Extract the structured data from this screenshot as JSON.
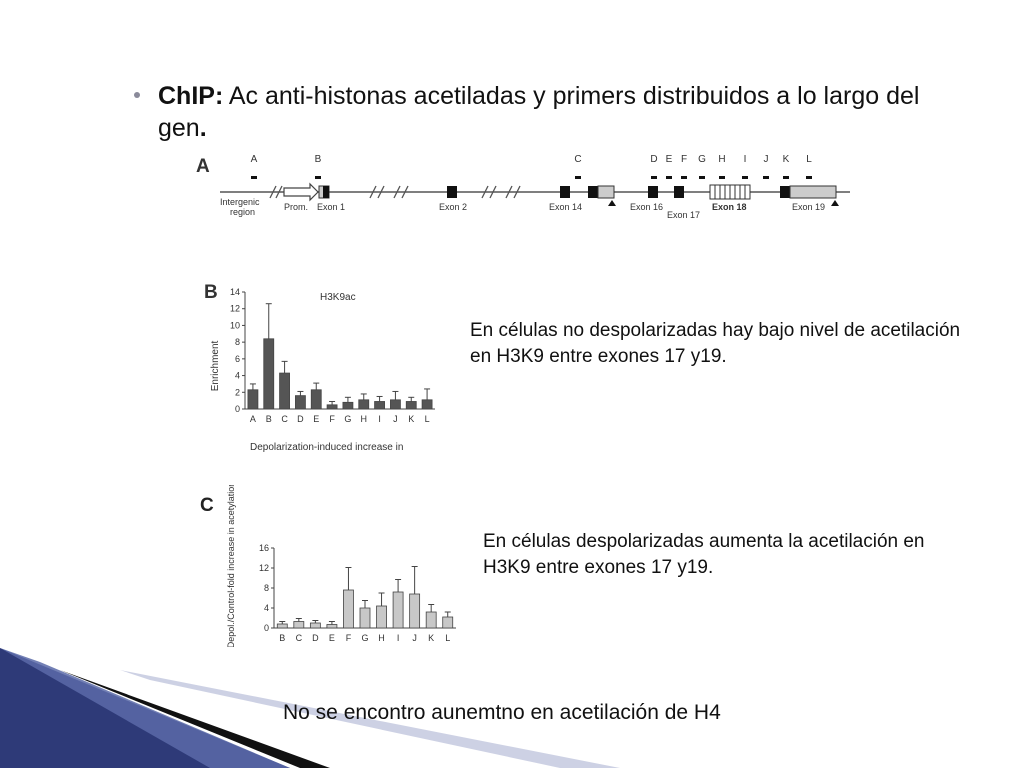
{
  "slide": {
    "title_bold": "ChIP:",
    "title_text": " Ac anti-histonas acetiladas y primers distribuidos a lo largo del gen",
    "title_end": ".",
    "note_b": "En células no despolarizadas hay bajo nivel de acetilación en H3K9 entre exones 17 y19.",
    "note_c": "En células despolarizadas aumenta la acetilación en H3K9 entre exones 17 y19.",
    "footer": "No se encontro aunemtno en acetilación de H4"
  },
  "gene_map": {
    "panel_label": "A",
    "primer_labels": [
      "A",
      "B",
      "C",
      "D",
      "E",
      "F",
      "G",
      "H",
      "I",
      "J",
      "K",
      "L"
    ],
    "region_labels": [
      "Intergenic",
      "region",
      "Prom.",
      "Exon 1",
      "Exon 2",
      "Exon 14",
      "Exon 16",
      "Exon 17",
      "Exon 18",
      "Exon 19"
    ]
  },
  "chart_data": [
    {
      "type": "bar",
      "panel_label": "B",
      "title": "H3K9ac",
      "ylabel": "Enrichment",
      "xlabel": "Depolarization-induced increase in",
      "categories": [
        "A",
        "B",
        "C",
        "D",
        "E",
        "F",
        "G",
        "H",
        "I",
        "J",
        "K",
        "L"
      ],
      "values": [
        2.3,
        8.4,
        4.3,
        1.6,
        2.3,
        0.5,
        0.8,
        1.1,
        0.9,
        1.1,
        0.9,
        1.1
      ],
      "errors": [
        0.7,
        4.2,
        1.4,
        0.5,
        0.8,
        0.4,
        0.6,
        0.7,
        0.6,
        1.0,
        0.5,
        1.3
      ],
      "ylim": [
        0,
        14
      ],
      "yticks": [
        0,
        2,
        4,
        6,
        8,
        10,
        12,
        14
      ],
      "color": "#555555"
    },
    {
      "type": "bar",
      "panel_label": "C",
      "ylabel": "Depol./Control-fold increase in acetylation",
      "categories": [
        "B",
        "C",
        "D",
        "E",
        "F",
        "G",
        "H",
        "I",
        "J",
        "K",
        "L"
      ],
      "values": [
        0.8,
        1.3,
        1.0,
        0.7,
        7.6,
        4.0,
        4.4,
        7.2,
        6.8,
        3.2,
        2.2
      ],
      "errors": [
        0.5,
        0.6,
        0.5,
        0.6,
        4.5,
        1.5,
        2.6,
        2.5,
        5.5,
        1.5,
        1.0
      ],
      "ylim": [
        0,
        16
      ],
      "yticks": [
        0,
        4,
        8,
        12,
        16
      ],
      "color": "#c8c8c8"
    }
  ]
}
